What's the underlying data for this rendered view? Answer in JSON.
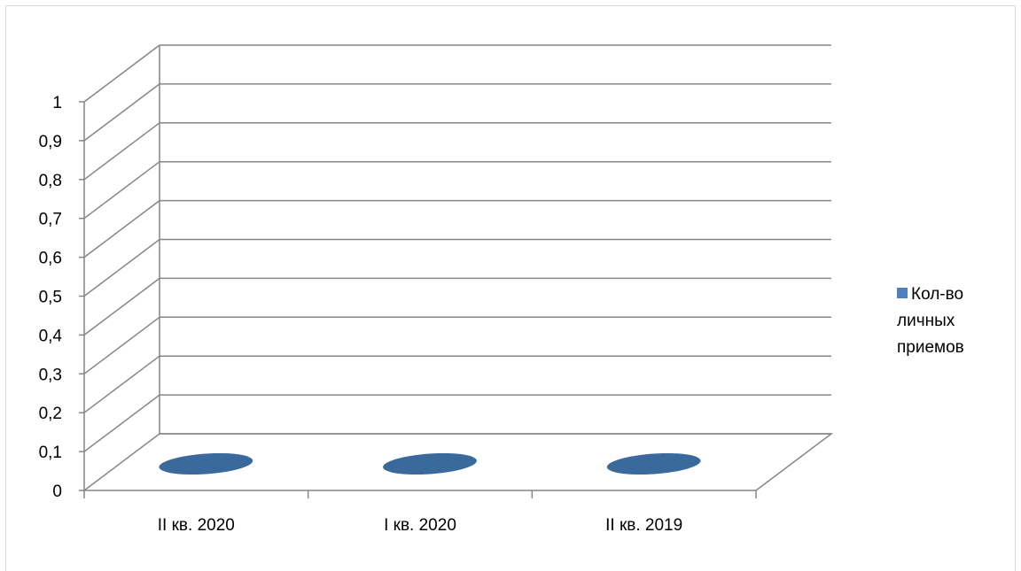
{
  "chart_data": {
    "type": "bar",
    "categories": [
      "II кв. 2020",
      "I кв. 2020",
      "II кв. 2019"
    ],
    "series": [
      {
        "name": "Кол-во личных приемов",
        "values": [
          0,
          0,
          0
        ]
      }
    ],
    "yticks": [
      "0",
      "0,1",
      "0,2",
      "0,3",
      "0,4",
      "0,5",
      "0,6",
      "0,7",
      "0,8",
      "0,9",
      "1"
    ],
    "ylim": [
      0,
      1
    ],
    "grid": true,
    "legend_position": "right",
    "style": "3d",
    "colors": {
      "series": "#4f81bd",
      "series_dark": "#3a6a9c",
      "grid": "#868686",
      "frame": "#d9d9d9"
    }
  }
}
